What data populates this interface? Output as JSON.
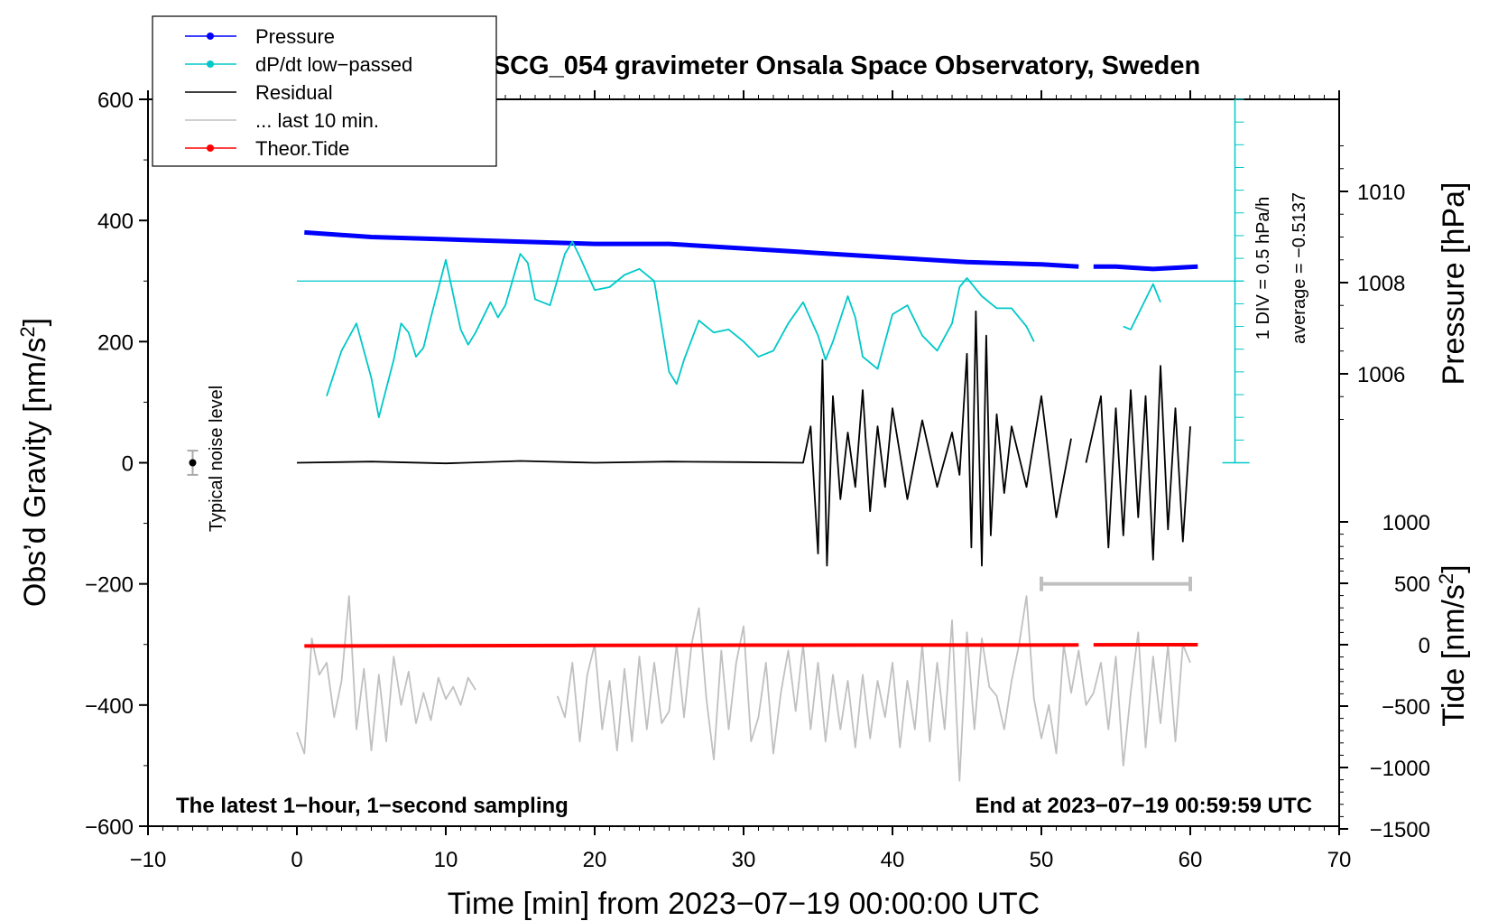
{
  "chart_data": {
    "type": "line",
    "title": "SCG_054 gravimeter Onsala Space Observatory, Sweden",
    "xlabel": "Time [min] from 2023−07−19 00:00:00 UTC",
    "ylabel": "Obs’d Gravity [nm/s",
    "ylabel_sup": "2",
    "ylabel_close": "]",
    "ylabel_right_pressure": "Pressure [hPa]",
    "ylabel_right_tide": "Tide [nm/s",
    "ylabel_right_tide_close": "]",
    "xlim": [
      -10,
      70
    ],
    "ylim": [
      -600,
      600
    ],
    "x_ticks": [
      -10,
      0,
      10,
      20,
      30,
      40,
      50,
      60,
      70
    ],
    "x_tick_labels": [
      "−10",
      "0",
      "10",
      "20",
      "30",
      "40",
      "50",
      "60",
      "70"
    ],
    "y_ticks": [
      -600,
      -400,
      -200,
      0,
      200,
      400,
      600
    ],
    "y_tick_labels": [
      "−600",
      "−400",
      "−200",
      "0",
      "200",
      "400",
      "600"
    ],
    "pressure_axis": {
      "ticks": [
        1006,
        1008,
        1010
      ],
      "tick_labels": [
        "1006",
        "1008",
        "1010"
      ]
    },
    "tide_axis": {
      "ticks": [
        -1500,
        -1000,
        -500,
        0,
        500,
        1000
      ],
      "tick_labels": [
        "−1500",
        "−1000",
        "−500",
        "0",
        "500",
        "1000"
      ]
    },
    "legend": [
      {
        "label": "Pressure",
        "color": "#0000ff",
        "marker": true
      },
      {
        "label": "dP/dt low−passed",
        "color": "#00c8c8",
        "marker": true
      },
      {
        "label": "Residual",
        "color": "#000000",
        "marker": false
      },
      {
        "label": "... last 10 min.",
        "color": "#c0c0c0",
        "marker": false
      },
      {
        "label": "Theor.Tide",
        "color": "#ff0000",
        "marker": true
      }
    ],
    "annotations": {
      "noise_label": "Typical noise level",
      "bottom_left": "The latest 1−hour, 1−second sampling",
      "bottom_right": "End at 2023−07−19 00:59:59 UTC",
      "scale_line1": "1 DIV = 0.5 hPa/h",
      "scale_line2": "average = −0.5137"
    },
    "series": [
      {
        "name": "Pressure",
        "color": "#0000ff",
        "axis": "pressure_hPa",
        "segments": [
          {
            "x": [
              0.5,
              5,
              10,
              15,
              20,
              25,
              30,
              35,
              40,
              45,
              50,
              52.5
            ],
            "y": [
              1009.1,
              1009.0,
              1008.95,
              1008.9,
              1008.85,
              1008.85,
              1008.75,
              1008.65,
              1008.55,
              1008.45,
              1008.4,
              1008.35
            ]
          },
          {
            "x": [
              53.5,
              55,
              57.5,
              60.5
            ],
            "y": [
              1008.35,
              1008.35,
              1008.3,
              1008.35
            ]
          }
        ]
      },
      {
        "name": "dP/dt low−passed",
        "color": "#00c8c8",
        "axis": "gravity",
        "segments": [
          {
            "x": [
              2,
              3,
              4,
              5,
              5.5,
              6.5,
              7,
              7.5,
              8,
              8.5,
              9,
              10,
              11,
              11.5,
              12,
              13,
              13.5,
              14,
              15,
              15.5,
              16,
              17,
              18,
              18.5,
              19,
              20,
              21,
              22,
              23,
              24,
              25,
              25.5,
              26,
              27,
              28,
              29,
              30,
              31,
              32,
              33,
              34,
              35,
              35.5,
              36,
              37,
              37.5,
              38,
              39,
              40,
              41,
              42,
              43,
              44,
              44.5,
              45,
              46,
              47,
              48,
              49,
              49.5
            ],
            "y": [
              110,
              185,
              230,
              140,
              75,
              170,
              230,
              215,
              175,
              190,
              240,
              335,
              220,
              195,
              215,
              265,
              240,
              260,
              345,
              330,
              270,
              260,
              345,
              365,
              340,
              285,
              290,
              310,
              320,
              300,
              150,
              130,
              170,
              235,
              215,
              220,
              200,
              175,
              185,
              230,
              265,
              210,
              170,
              200,
              275,
              240,
              175,
              155,
              245,
              260,
              210,
              185,
              230,
              290,
              305,
              275,
              255,
              255,
              225,
              200
            ]
          },
          {
            "x": [
              55.5,
              56,
              57,
              57.5,
              58
            ],
            "y": [
              225,
              220,
              270,
              295,
              265
            ]
          }
        ]
      },
      {
        "name": "Residual",
        "color": "#000000",
        "axis": "gravity",
        "segments": [
          {
            "x": [
              0,
              5,
              10,
              15,
              20,
              25,
              30,
              34,
              34.5,
              35,
              35.3,
              35.6,
              36,
              36.5,
              37,
              37.5,
              38,
              38.5,
              39,
              39.5,
              40,
              41,
              42,
              43,
              44,
              44.5,
              45,
              45.3,
              45.6,
              46,
              46.3,
              46.6,
              47,
              47.5,
              48,
              49,
              50,
              51,
              52
            ],
            "y": [
              0,
              2,
              -1,
              3,
              0,
              2,
              1,
              0,
              60,
              -150,
              170,
              -170,
              110,
              -60,
              50,
              -40,
              120,
              -80,
              60,
              -40,
              90,
              -60,
              70,
              -40,
              50,
              -20,
              180,
              -140,
              250,
              -170,
              210,
              -120,
              80,
              -50,
              60,
              -40,
              110,
              -90,
              40
            ]
          },
          {
            "x": [
              53,
              54,
              54.5,
              55,
              55.5,
              56,
              56.5,
              57,
              57.5,
              58,
              58.5,
              59,
              59.5,
              60
            ],
            "y": [
              0,
              110,
              -140,
              90,
              -120,
              120,
              -90,
              110,
              -160,
              160,
              -110,
              90,
              -130,
              60
            ]
          }
        ]
      },
      {
        "name": "... last 10 min.",
        "color": "#c0c0c0",
        "axis": "gravity",
        "segments": [
          {
            "x": [
              0,
              0.5,
              1,
              1.5,
              2,
              2.5,
              3,
              3.5,
              4,
              4.5,
              5,
              5.5,
              6,
              6.5,
              7,
              7.5,
              8,
              8.5,
              9,
              9.5,
              10,
              10.5,
              11,
              11.5,
              12
            ],
            "y": [
              -445,
              -480,
              -290,
              -350,
              -330,
              -420,
              -360,
              -220,
              -440,
              -340,
              -475,
              -350,
              -460,
              -320,
              -400,
              -345,
              -430,
              -380,
              -425,
              -355,
              -390,
              -370,
              -400,
              -355,
              -375
            ]
          },
          {
            "x": [
              17.5,
              18,
              18.5,
              19,
              19.5,
              20,
              20.5,
              21,
              21.5,
              22,
              22.5,
              23,
              23.5,
              24,
              24.5,
              25,
              25.5,
              26,
              26.5,
              27,
              27.5,
              28,
              28.5,
              29,
              29.5,
              30,
              30.5,
              31,
              31.5,
              32,
              32.5,
              33,
              33.5,
              34,
              34.5,
              35,
              35.5,
              36,
              36.5,
              37,
              37.5,
              38,
              38.5,
              39,
              39.5,
              40,
              40.5,
              41,
              41.5,
              42,
              42.5,
              43,
              43.5,
              44,
              44.5,
              45,
              45.5,
              46,
              46.5,
              47,
              47.5,
              48,
              48.5,
              49,
              49.5,
              50,
              50.5,
              51,
              51.5,
              52,
              52.5,
              53,
              53.5,
              54,
              54.5,
              55,
              55.5,
              56,
              56.5,
              57,
              57.5,
              58,
              58.5,
              59,
              59.5,
              60
            ],
            "y": [
              -385,
              -420,
              -330,
              -460,
              -350,
              -300,
              -440,
              -360,
              -475,
              -340,
              -460,
              -320,
              -440,
              -330,
              -430,
              -410,
              -300,
              -420,
              -300,
              -240,
              -390,
              -490,
              -310,
              -440,
              -330,
              -270,
              -460,
              -420,
              -330,
              -480,
              -380,
              -310,
              -410,
              -300,
              -440,
              -330,
              -460,
              -350,
              -440,
              -360,
              -470,
              -350,
              -455,
              -360,
              -420,
              -330,
              -470,
              -360,
              -440,
              -300,
              -460,
              -330,
              -440,
              -260,
              -525,
              -280,
              -440,
              -290,
              -370,
              -385,
              -440,
              -360,
              -300,
              -220,
              -390,
              -455,
              -400,
              -480,
              -300,
              -380,
              -310,
              -400,
              -380,
              -330,
              -440,
              -320,
              -500,
              -380,
              -280,
              -470,
              -320,
              -430,
              -300,
              -460,
              -300,
              -330
            ]
          }
        ]
      },
      {
        "name": "Theor.Tide",
        "color": "#ff0000",
        "axis": "tide",
        "segments": [
          {
            "x": [
              0.5,
              10,
              20,
              30,
              40,
              52.5
            ],
            "y": [
              -10,
              -8,
              -6,
              -4,
              -3,
              -2
            ]
          },
          {
            "x": [
              53.5,
              60.5
            ],
            "y": [
              -1,
              0
            ]
          }
        ]
      }
    ],
    "noise_bar": {
      "x": -7,
      "y": 0,
      "err": 20
    },
    "last10_range": {
      "x": [
        50,
        60
      ],
      "y": -200
    },
    "scale_bar": {
      "x": 63,
      "y_range": [
        0,
        600
      ],
      "baseline": 300
    }
  }
}
